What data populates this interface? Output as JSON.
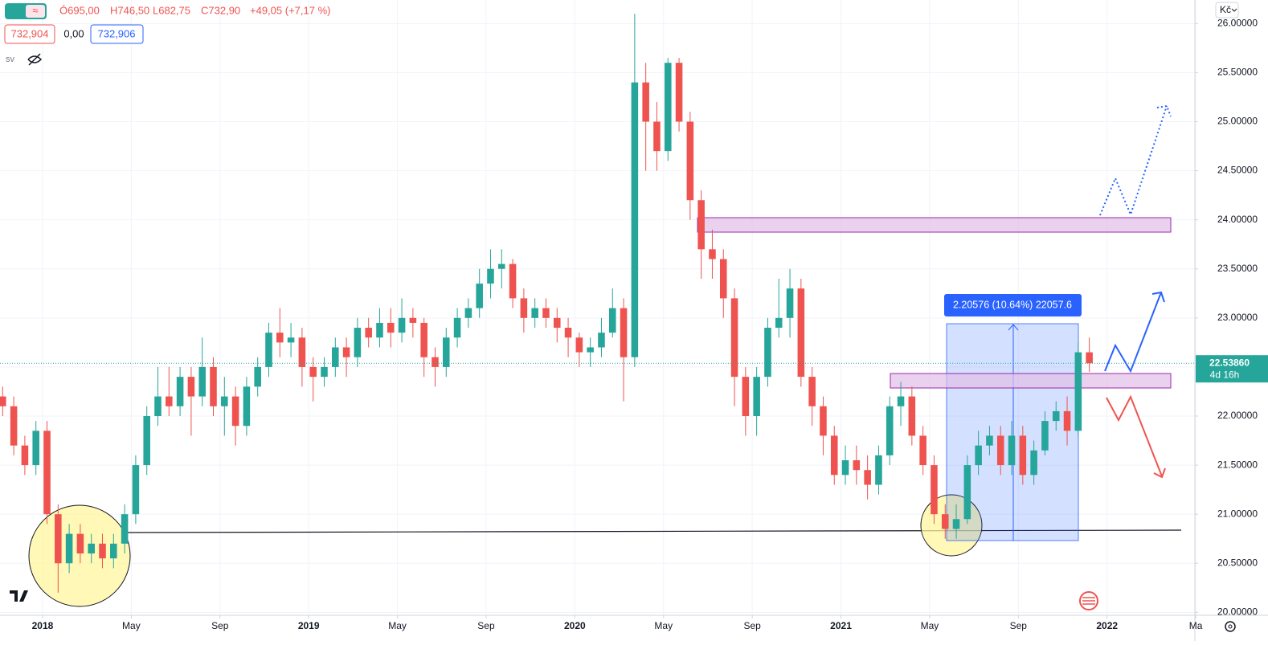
{
  "ui": {
    "legend": [
      "Ó695,00",
      "H746,50",
      "L682,75",
      "C732,90",
      "+49,05 (+7,17 %)"
    ],
    "bid": "732,904",
    "spread": "0,00",
    "ask": "732,906",
    "volume_label": "sv",
    "currency": "Kč"
  },
  "chart_data": {
    "type": "candlestick",
    "up_color": "#26a69a",
    "down_color": "#ef5350",
    "grid": true,
    "x": [
      -1.8,
      -1.3,
      -0.8,
      -0.3,
      0.2,
      0.7,
      1.2,
      1.7,
      2.2,
      2.7,
      3.2,
      3.7,
      4.2,
      4.7,
      5.2,
      5.7,
      6.2,
      6.7,
      7.2,
      7.7,
      8.2,
      8.7,
      9.2,
      9.7,
      10.2,
      10.7,
      11.2,
      11.7,
      12.2,
      12.7,
      13.2,
      13.7,
      14.2,
      14.7,
      15.2,
      15.7,
      16.2,
      16.7,
      17.2,
      17.7,
      18.2,
      18.7,
      19.2,
      19.7,
      20.2,
      20.7,
      21.2,
      21.7,
      22.2,
      22.7,
      23.2,
      23.7,
      24.2,
      24.7,
      25.2,
      25.7,
      26.2,
      26.7,
      27.2,
      27.7,
      28.2,
      28.7,
      29.2,
      29.7,
      30.2,
      30.7,
      31.2,
      31.7,
      32.2,
      32.7,
      33.2,
      33.7,
      34.2,
      34.7,
      35.2,
      35.7,
      36.2,
      36.7,
      37.2,
      37.7,
      38.2,
      38.7,
      39.2,
      39.7,
      40.2,
      40.7,
      41.2,
      41.7,
      42.2,
      42.7,
      43.2,
      43.7,
      44.2,
      44.7,
      45.2,
      45.7,
      46.2,
      46.7,
      47.2
    ],
    "open": [
      22.2,
      22.1,
      21.7,
      21.5,
      21.85,
      21.0,
      20.5,
      20.8,
      20.6,
      20.7,
      20.55,
      20.7,
      21.0,
      21.5,
      22.0,
      22.2,
      22.1,
      22.4,
      22.2,
      22.5,
      22.1,
      22.2,
      21.9,
      22.3,
      22.5,
      22.85,
      22.75,
      22.8,
      22.5,
      22.4,
      22.5,
      22.7,
      22.6,
      22.9,
      22.8,
      22.95,
      22.85,
      23.0,
      22.95,
      22.6,
      22.5,
      22.8,
      23.0,
      23.1,
      23.35,
      23.5,
      23.55,
      23.2,
      23.0,
      23.1,
      23.0,
      22.9,
      22.8,
      22.65,
      22.7,
      22.85,
      23.1,
      22.6,
      25.4,
      25.0,
      24.7,
      25.6,
      25.0,
      24.2,
      23.7,
      23.6,
      23.2,
      22.4,
      22.0,
      22.4,
      22.9,
      23.0,
      23.3,
      22.4,
      22.1,
      21.8,
      21.4,
      21.55,
      21.45,
      21.3,
      21.6,
      22.1,
      22.2,
      21.8,
      21.5,
      21.0,
      20.85,
      20.95,
      21.5,
      21.7,
      21.8,
      21.5,
      21.8,
      21.4,
      21.65,
      21.95,
      22.05,
      21.85,
      22.65
    ],
    "high": [
      22.3,
      22.2,
      21.8,
      21.95,
      21.95,
      21.1,
      20.9,
      20.9,
      20.8,
      20.8,
      20.8,
      21.1,
      21.6,
      22.1,
      22.5,
      22.5,
      22.5,
      22.5,
      22.8,
      22.6,
      22.4,
      22.3,
      22.4,
      22.6,
      22.95,
      23.1,
      22.95,
      22.9,
      22.6,
      22.6,
      22.8,
      22.8,
      23.0,
      23.0,
      23.1,
      23.1,
      23.2,
      23.1,
      23.0,
      22.7,
      22.9,
      23.1,
      23.2,
      23.5,
      23.7,
      23.7,
      23.6,
      23.3,
      23.2,
      23.2,
      23.1,
      23.0,
      22.85,
      22.8,
      23.0,
      23.3,
      23.2,
      26.1,
      25.6,
      25.2,
      25.65,
      25.65,
      25.1,
      24.3,
      23.9,
      23.7,
      23.3,
      22.5,
      22.5,
      23.0,
      23.4,
      23.5,
      23.4,
      22.5,
      22.2,
      21.9,
      21.7,
      21.7,
      21.6,
      21.7,
      22.2,
      22.35,
      22.3,
      21.9,
      21.6,
      21.1,
      21.1,
      21.6,
      21.85,
      21.9,
      21.9,
      21.95,
      21.9,
      21.75,
      22.05,
      22.15,
      22.2,
      22.75,
      22.8
    ],
    "low": [
      22.0,
      21.6,
      21.4,
      21.4,
      20.9,
      20.2,
      20.4,
      20.5,
      20.5,
      20.45,
      20.45,
      20.6,
      20.9,
      21.4,
      21.9,
      22.0,
      22.0,
      21.8,
      22.1,
      22.0,
      21.8,
      21.7,
      21.8,
      22.2,
      22.4,
      22.6,
      22.6,
      22.3,
      22.15,
      22.3,
      22.4,
      22.4,
      22.5,
      22.7,
      22.7,
      22.7,
      22.75,
      22.8,
      22.4,
      22.3,
      22.4,
      22.7,
      22.9,
      23.0,
      23.2,
      23.3,
      23.1,
      22.85,
      22.9,
      22.9,
      22.75,
      22.6,
      22.5,
      22.5,
      22.6,
      22.8,
      22.15,
      22.5,
      24.5,
      24.5,
      24.6,
      24.9,
      24.0,
      23.4,
      23.4,
      23.0,
      22.1,
      21.8,
      21.8,
      22.3,
      22.8,
      22.8,
      22.3,
      21.9,
      21.6,
      21.3,
      21.3,
      21.3,
      21.15,
      21.2,
      21.5,
      21.9,
      21.7,
      21.4,
      20.9,
      20.75,
      20.75,
      20.9,
      21.4,
      21.6,
      21.4,
      21.4,
      21.3,
      21.3,
      21.6,
      21.85,
      21.7,
      21.8,
      22.45
    ],
    "close": [
      22.1,
      21.7,
      21.5,
      21.85,
      21.0,
      20.5,
      20.8,
      20.6,
      20.7,
      20.55,
      20.7,
      21.0,
      21.5,
      22.0,
      22.2,
      22.1,
      22.4,
      22.2,
      22.5,
      22.1,
      22.2,
      21.9,
      22.3,
      22.5,
      22.85,
      22.75,
      22.8,
      22.5,
      22.4,
      22.5,
      22.7,
      22.6,
      22.9,
      22.8,
      22.95,
      22.85,
      23.0,
      22.95,
      22.6,
      22.5,
      22.8,
      23.0,
      23.1,
      23.35,
      23.5,
      23.55,
      23.2,
      23.0,
      23.1,
      23.0,
      22.9,
      22.8,
      22.65,
      22.7,
      22.85,
      23.1,
      22.6,
      25.4,
      25.0,
      24.7,
      25.6,
      25.0,
      24.2,
      23.7,
      23.6,
      23.2,
      22.4,
      22.0,
      22.4,
      22.9,
      23.0,
      23.3,
      22.4,
      22.1,
      21.8,
      21.4,
      21.55,
      21.45,
      21.3,
      21.6,
      22.1,
      22.2,
      21.8,
      21.5,
      21.0,
      20.85,
      20.95,
      21.5,
      21.7,
      21.8,
      21.5,
      21.8,
      21.4,
      21.65,
      21.95,
      22.05,
      21.85,
      22.65,
      22.5386
    ],
    "xlim": [
      -1.92,
      51.96
    ],
    "xticks": [
      {
        "value": 0,
        "label": "2018"
      },
      {
        "value": 4,
        "label": "May"
      },
      {
        "value": 8,
        "label": "Sep"
      },
      {
        "value": 12,
        "label": "2019"
      },
      {
        "value": 16,
        "label": "May"
      },
      {
        "value": 20,
        "label": "Sep"
      },
      {
        "value": 24,
        "label": "2020"
      },
      {
        "value": 28,
        "label": "May"
      },
      {
        "value": 32,
        "label": "Sep"
      },
      {
        "value": 36,
        "label": "2021"
      },
      {
        "value": 40,
        "label": "May"
      },
      {
        "value": 44,
        "label": "Sep"
      },
      {
        "value": 48,
        "label": "2022"
      },
      {
        "value": 52,
        "label": "Ma"
      }
    ],
    "ylim": [
      19.97,
      26.24
    ],
    "yticks": [
      {
        "value": 20,
        "label": "20.00000"
      },
      {
        "value": 20.5,
        "label": "20.50000"
      },
      {
        "value": 21,
        "label": "21.00000"
      },
      {
        "value": 21.5,
        "label": "21.50000"
      },
      {
        "value": 22,
        "label": "22.00000"
      },
      {
        "value": 22.5,
        "label": "22.50000"
      },
      {
        "value": 23,
        "label": "23.00000"
      },
      {
        "value": 23.5,
        "label": "23.50000"
      },
      {
        "value": 24,
        "label": "24.00000"
      },
      {
        "value": 24.5,
        "label": "24.50000"
      },
      {
        "value": 25,
        "label": "25.00000"
      },
      {
        "value": 25.5,
        "label": "25.50000"
      },
      {
        "value": 26,
        "label": "26.00000"
      }
    ],
    "last_price": {
      "value": 22.5386,
      "label": "22.53860"
    },
    "countdown": "4d 16h",
    "measure_label": "2.20576 (10.64%) 22057.6"
  }
}
